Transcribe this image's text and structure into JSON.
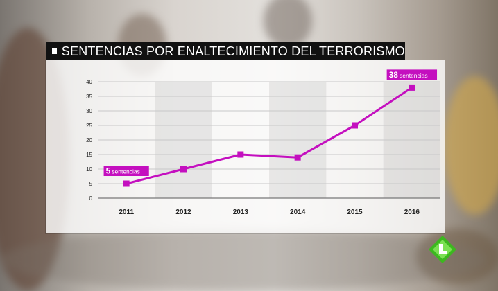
{
  "title": "SENTENCIAS POR ENALTECIMIENTO DEL TERRORISMO",
  "colors": {
    "accent": "#c40fbf",
    "title_bg": "#111111",
    "logo": "#3cb81f"
  },
  "icons": {
    "title_marker": "square-icon",
    "logo": "lasexta-logo-icon"
  },
  "chart_data": {
    "type": "line",
    "categories": [
      "2011",
      "2012",
      "2013",
      "2014",
      "2015",
      "2016"
    ],
    "series": [
      {
        "values": [
          5,
          10,
          15,
          14,
          25,
          38
        ]
      }
    ],
    "yticks": [
      "0",
      "5",
      "10",
      "15",
      "20",
      "25",
      "30",
      "35",
      "40"
    ],
    "ylim": [
      0,
      40
    ],
    "grid": true,
    "annotations": [
      {
        "category": "2011",
        "number": "5",
        "text": "sentencias"
      },
      {
        "category": "2016",
        "number": "38",
        "text": "sentencias"
      }
    ]
  }
}
